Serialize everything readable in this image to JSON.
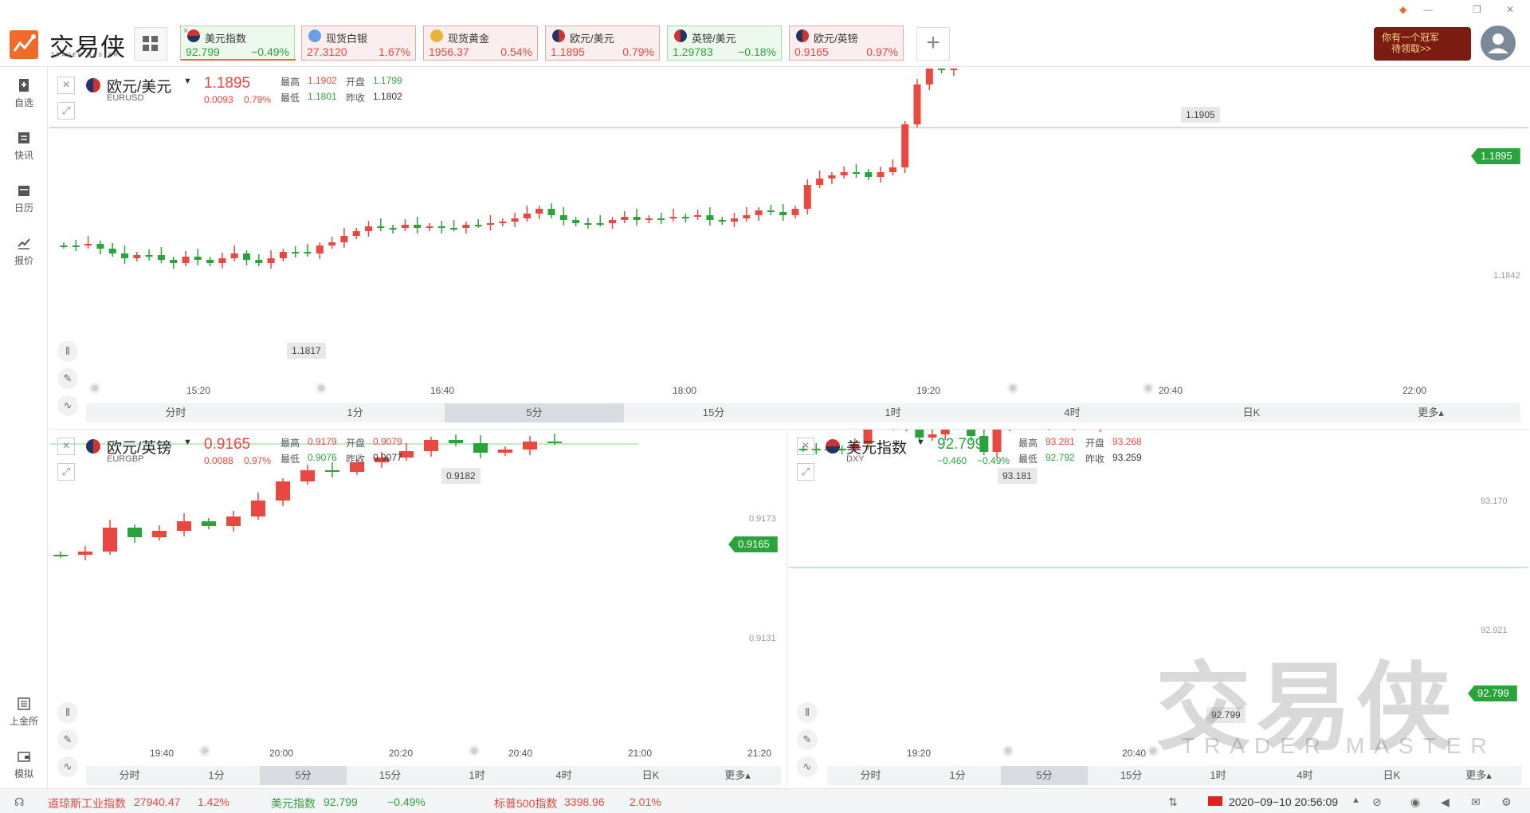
{
  "app": {
    "name": "交易侠",
    "subtitle": "TRADER MASTER"
  },
  "tickers": [
    {
      "name": "美元指数",
      "price": "92.799",
      "change": "−0.49%",
      "dir": "down",
      "flag": "us"
    },
    {
      "name": "现货白银",
      "price": "27.3120",
      "change": "1.67%",
      "dir": "up",
      "flag": "silver"
    },
    {
      "name": "现货黄金",
      "price": "1956.37",
      "change": "0.54%",
      "dir": "up",
      "flag": "gold"
    },
    {
      "name": "欧元/美元",
      "price": "1.1895",
      "change": "0.79%",
      "dir": "up",
      "flag": "eu"
    },
    {
      "name": "英镑/美元",
      "price": "1.29783",
      "change": "−0.18%",
      "dir": "down",
      "flag": "gb"
    },
    {
      "name": "欧元/英镑",
      "price": "0.9165",
      "change": "0.97%",
      "dir": "up",
      "flag": "eu"
    }
  ],
  "promo": {
    "line1": "你有一个冠军",
    "line2": "待领取>>"
  },
  "sidebar": [
    {
      "label": "自选",
      "icon": "bookmark-icon"
    },
    {
      "label": "快讯",
      "icon": "news-icon"
    },
    {
      "label": "日历",
      "icon": "calendar-icon"
    },
    {
      "label": "报价",
      "icon": "quote-chart-icon"
    },
    {
      "label": "上金所",
      "icon": "exchange-icon"
    },
    {
      "label": "模拟",
      "icon": "wallet-icon"
    }
  ],
  "timeframes": [
    "分时",
    "1分",
    "5分",
    "15分",
    "1时",
    "4时",
    "日K",
    "更多▴"
  ],
  "labels": {
    "high": "最高",
    "open": "开盘",
    "low": "最低",
    "prev_close": "昨收"
  },
  "panels": {
    "eurusd": {
      "name": "欧元/美元",
      "code": "EURUSD",
      "price": "1.1895",
      "chg": "0.0093",
      "pct": "0.79%",
      "high": "1.1902",
      "open": "1.1799",
      "low": "1.1801",
      "prev_close": "1.1802",
      "current_tag": "1.1895",
      "hi_label": "1.1905",
      "lo_label": "1.1817",
      "ytick": "1.1842",
      "xticks": [
        "15:20",
        "16:40",
        "18:00",
        "19:20",
        "20:40",
        "22:00"
      ],
      "active_tf": "5分"
    },
    "eurgbp": {
      "name": "欧元/英镑",
      "code": "EURGBP",
      "price": "0.9165",
      "chg": "0.0088",
      "pct": "0.97%",
      "high": "0.9179",
      "open": "0.9079",
      "low": "0.9076",
      "prev_close": "0.9077",
      "current_tag": "0.9165",
      "hi_label": "0.9182",
      "yticks": [
        "0.9173",
        "0.9131"
      ],
      "xticks": [
        "19:40",
        "20:00",
        "20:20",
        "20:40",
        "21:00",
        "21:20"
      ],
      "active_tf": "5分"
    },
    "dxy": {
      "name": "美元指数",
      "code": "DXY",
      "price": "92.799",
      "chg": "−0.460",
      "pct": "−0.49%",
      "high": "93.281",
      "open": "93.268",
      "low": "92.792",
      "prev_close": "93.259",
      "current_tag": "92.799",
      "hi_label": "93.181",
      "lo_label": "92.799",
      "yticks": [
        "93.170",
        "92.921"
      ],
      "xticks": [
        "19:20",
        "20:40"
      ],
      "active_tf": "5分"
    }
  },
  "watermark": {
    "cn": "交易侠",
    "en": "TRADER MASTER"
  },
  "statusbar": {
    "items": [
      {
        "name": "道琼斯工业指数",
        "value": "27940.47",
        "pct": "1.42%",
        "dir": "up"
      },
      {
        "name": "美元指数",
        "value": "92.799",
        "pct": "−0.49%",
        "dir": "down"
      },
      {
        "name": "标普500指数",
        "value": "3398.96",
        "pct": "2.01%",
        "dir": "up"
      }
    ],
    "datetime": "2020−09−10 20:56:09"
  },
  "colors": {
    "up": "#e8483f",
    "down": "#2aa43a",
    "accent": "#f26a2a"
  }
}
